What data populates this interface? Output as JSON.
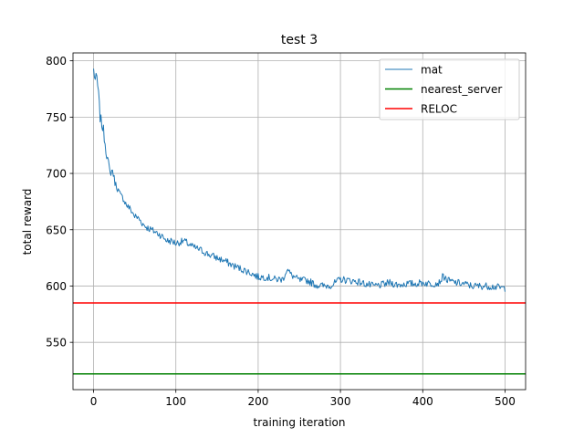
{
  "chart_data": {
    "type": "line",
    "title": "test 3",
    "xlabel": "training iteration",
    "ylabel": "total reward",
    "xlim": [
      -25,
      525
    ],
    "ylim": [
      508,
      807
    ],
    "xticks": [
      0,
      100,
      200,
      300,
      400,
      500
    ],
    "yticks": [
      550,
      600,
      650,
      700,
      750,
      800
    ],
    "xtick_labels": [
      "0",
      "100",
      "200",
      "300",
      "400",
      "500"
    ],
    "ytick_labels": [
      "550",
      "600",
      "650",
      "700",
      "750",
      "800"
    ],
    "grid": true,
    "legend_position": "top-right",
    "series": [
      {
        "name": "mat",
        "color": "#1f77b4",
        "style": "noisy-line",
        "x": [
          0,
          2,
          4,
          6,
          8,
          10,
          12,
          15,
          18,
          20,
          23,
          26,
          30,
          33,
          36,
          40,
          45,
          50,
          55,
          60,
          65,
          70,
          75,
          80,
          85,
          90,
          95,
          100,
          110,
          120,
          130,
          140,
          150,
          160,
          170,
          180,
          190,
          200,
          210,
          220,
          230,
          235,
          240,
          250,
          260,
          270,
          280,
          290,
          300,
          310,
          320,
          330,
          340,
          350,
          360,
          370,
          380,
          390,
          400,
          410,
          420,
          425,
          430,
          440,
          450,
          460,
          470,
          480,
          490,
          500
        ],
        "values": [
          792,
          783,
          785,
          770,
          750,
          744,
          738,
          722,
          708,
          700,
          703,
          692,
          685,
          680,
          678,
          672,
          668,
          662,
          660,
          655,
          652,
          650,
          648,
          646,
          643,
          640,
          640,
          638,
          640,
          635,
          632,
          628,
          625,
          622,
          618,
          615,
          612,
          608,
          608,
          606,
          606,
          615,
          610,
          605,
          605,
          601,
          600,
          601,
          606,
          605,
          604,
          602,
          600,
          601,
          603,
          601,
          602,
          602,
          603,
          602,
          603,
          609,
          605,
          603,
          602,
          600,
          600,
          600,
          599,
          598
        ]
      },
      {
        "name": "nearest_server",
        "color": "#008000",
        "style": "hline",
        "value": 522
      },
      {
        "name": "RELOC",
        "color": "#ff0000",
        "style": "hline",
        "value": 585
      }
    ]
  }
}
